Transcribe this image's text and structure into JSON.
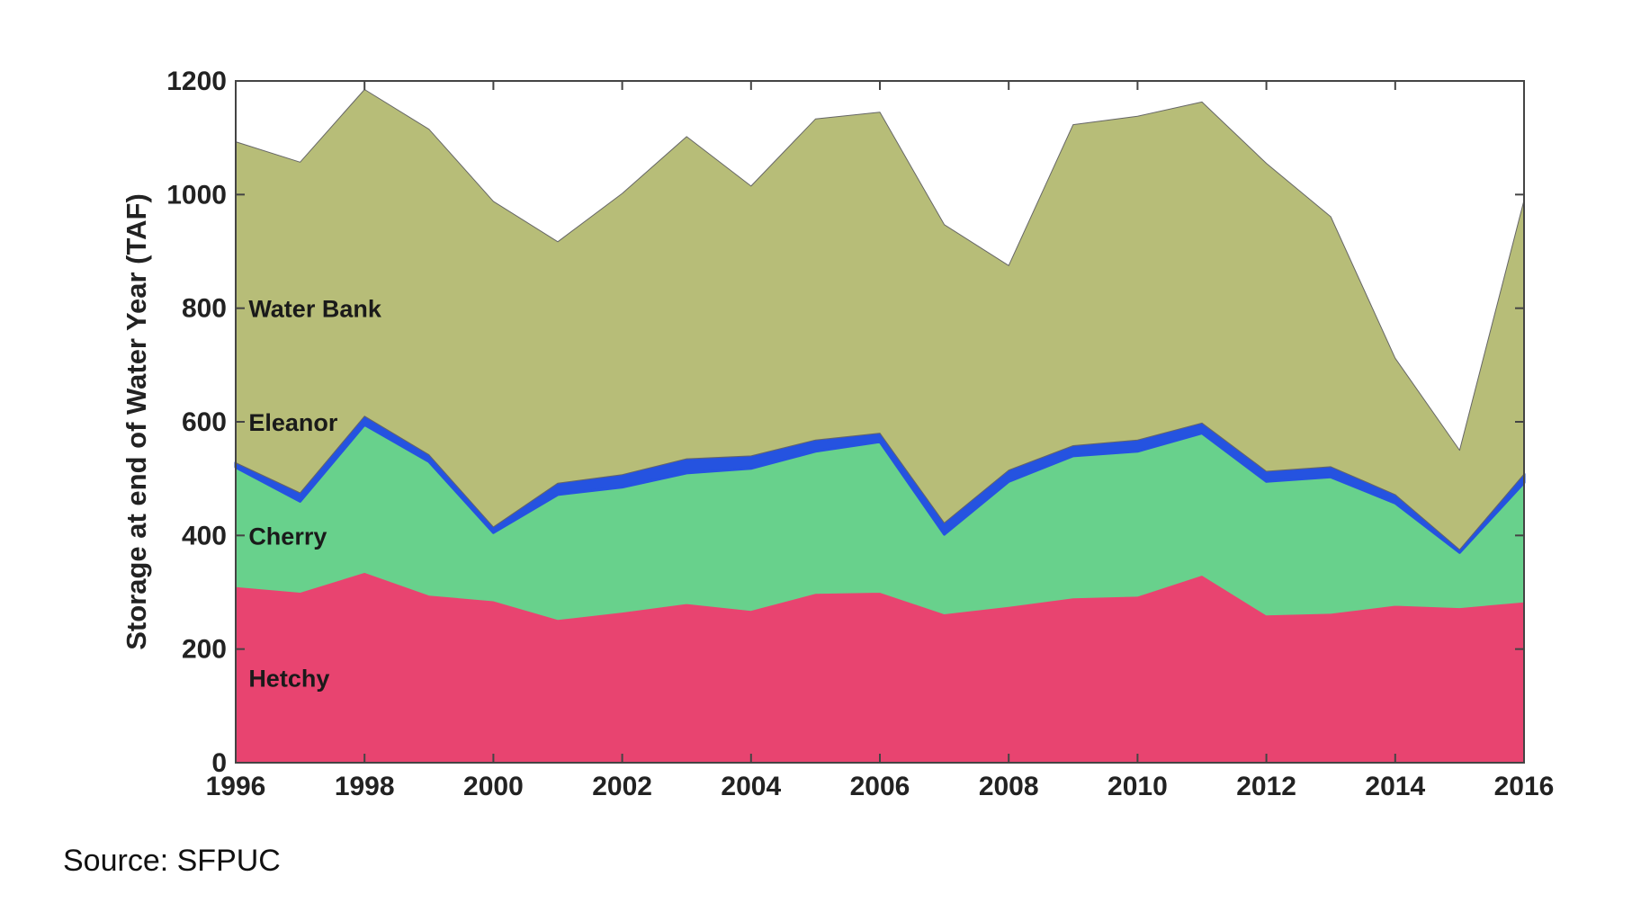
{
  "chart_data": {
    "type": "area",
    "stacked": true,
    "ylabel": "Storage at end of Water Year (TAF)",
    "xlabel": "",
    "xlim": [
      1996,
      2016
    ],
    "ylim": [
      0,
      1200
    ],
    "xticks": [
      1996,
      1998,
      2000,
      2002,
      2004,
      2006,
      2008,
      2010,
      2012,
      2014,
      2016
    ],
    "yticks": [
      0,
      200,
      400,
      600,
      800,
      1000,
      1200
    ],
    "x": [
      1996,
      1997,
      1998,
      1999,
      2000,
      2001,
      2002,
      2003,
      2004,
      2005,
      2006,
      2007,
      2008,
      2009,
      2010,
      2011,
      2012,
      2013,
      2014,
      2015,
      2016
    ],
    "series": [
      {
        "name": "Hetchy",
        "color": "#e84470",
        "values": [
          310,
          300,
          335,
          295,
          285,
          252,
          265,
          280,
          268,
          298,
          300,
          262,
          275,
          290,
          293,
          330,
          260,
          263,
          277,
          273,
          283
        ]
      },
      {
        "name": "Cherry",
        "color": "#68d18c",
        "values": [
          210,
          160,
          260,
          235,
          120,
          220,
          220,
          230,
          250,
          250,
          265,
          140,
          220,
          250,
          255,
          250,
          235,
          240,
          180,
          97,
          210
        ]
      },
      {
        "name": "Eleanor",
        "color": "#2553e0",
        "values": [
          8,
          15,
          15,
          12,
          10,
          20,
          22,
          25,
          22,
          20,
          15,
          20,
          20,
          18,
          20,
          18,
          18,
          18,
          15,
          5,
          15
        ]
      },
      {
        "name": "Water Bank",
        "color": "#b7bd78",
        "values": [
          565,
          582,
          575,
          573,
          573,
          425,
          495,
          567,
          475,
          565,
          565,
          525,
          360,
          565,
          570,
          565,
          542,
          440,
          240,
          175,
          482
        ]
      }
    ]
  },
  "source_text": "Source: SFPUC"
}
